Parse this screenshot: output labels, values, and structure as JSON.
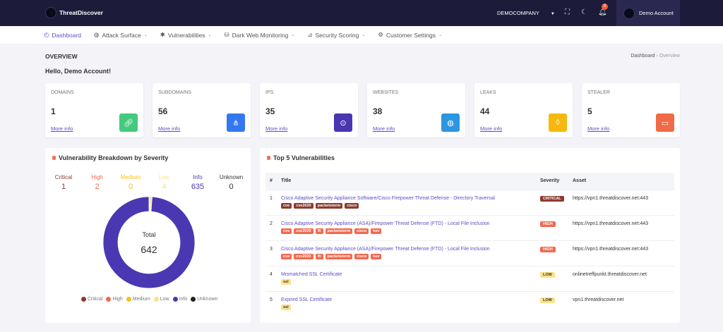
{
  "app": {
    "name": "ThreatDiscover",
    "company": "DEMOCOMPANY",
    "notifications": "0",
    "account": "Demo Account"
  },
  "nav": [
    {
      "label": "Dashboard",
      "icon": "gauge-icon"
    },
    {
      "label": "Attack Surface",
      "icon": "globe-icon"
    },
    {
      "label": "Vulnerabilities",
      "icon": "bug-icon"
    },
    {
      "label": "Dark Web Monitoring",
      "icon": "spy-icon"
    },
    {
      "label": "Security Scoring",
      "icon": "chart-icon"
    },
    {
      "label": "Customer Settings",
      "icon": "gear-icon"
    }
  ],
  "page": {
    "title": "OVERVIEW",
    "breadcrumb": [
      "Dashboard",
      "Overview"
    ],
    "greeting": "Hello, Demo Account!"
  },
  "cards": [
    {
      "label": "DOMAINS",
      "value": "1",
      "more": "More info",
      "icon": "link-icon",
      "color": "#45c97f"
    },
    {
      "label": "SUBDOMAINS",
      "value": "56",
      "more": "More info",
      "icon": "share-icon",
      "color": "#3478f0"
    },
    {
      "label": "IPS",
      "value": "35",
      "more": "More info",
      "icon": "map-pin-icon",
      "color": "#4a36b0"
    },
    {
      "label": "WEBSITES",
      "value": "38",
      "more": "More info",
      "icon": "globe-icon",
      "color": "#2c96e0"
    },
    {
      "label": "LEAKS",
      "value": "44",
      "more": "More info",
      "icon": "drop-icon",
      "color": "#f7b80e"
    },
    {
      "label": "STEALER",
      "value": "5",
      "more": "More info",
      "icon": "mask-icon",
      "color": "#ef6a45"
    }
  ],
  "breakdown": {
    "title": "Vulnerability Breakdown by Severity",
    "total_label": "Total",
    "total": "642",
    "severities": [
      {
        "name": "Critical",
        "count": 1,
        "color": "#8b3a2e"
      },
      {
        "name": "High",
        "count": 2,
        "color": "#f2694e"
      },
      {
        "name": "Medium",
        "count": 0,
        "color": "#f9bf17"
      },
      {
        "name": "Low",
        "count": 4,
        "color": "#fde28a"
      },
      {
        "name": "Info",
        "count": 635,
        "color": "#4a38b2"
      },
      {
        "name": "Unknown",
        "count": 0,
        "color": "#222222"
      }
    ]
  },
  "top5": {
    "title": "Top 5 Vulnerabilities",
    "headers": [
      "#",
      "Title",
      "Severity",
      "Asset"
    ],
    "rows": [
      {
        "n": "1",
        "title": "Cisco Adaptive Security Appliance Software/Cisco Firepower Threat Defense - Directory Traversal",
        "tags": [
          "cve",
          "cve2020",
          "packetstorm",
          "cisco"
        ],
        "severity": "CRITICAL",
        "asset": "https://vpn1.threatdiscover.net:443"
      },
      {
        "n": "2",
        "title": "Cisco Adaptive Security Appliance (ASA)/Firepower Threat Defense (FTD) - Local File Inclusion",
        "tags": [
          "cve",
          "cve2020",
          "lfi",
          "packetstorm",
          "cisco",
          "kev"
        ],
        "severity": "HIGH",
        "asset": "https://vpn1.threatdiscover.net:443"
      },
      {
        "n": "3",
        "title": "Cisco Adaptive Security Appliance (ASA)/Firepower Threat Defense (FTD) - Local File Inclusion",
        "tags": [
          "cve",
          "cve2020",
          "lfi",
          "packetstorm",
          "cisco",
          "kev"
        ],
        "severity": "HIGH",
        "asset": "https://vpn1.threatdiscover.net:443"
      },
      {
        "n": "4",
        "title": "Mismatched SSL Certificate",
        "tags": [
          "ssl"
        ],
        "severity": "LOW",
        "asset": "onlinetreffpunkt.threatdiscover.net"
      },
      {
        "n": "5",
        "title": "Expired SSL Certificate",
        "tags": [
          "ssl"
        ],
        "severity": "LOW",
        "asset": "vpn1.threatdiscover.net"
      }
    ]
  }
}
